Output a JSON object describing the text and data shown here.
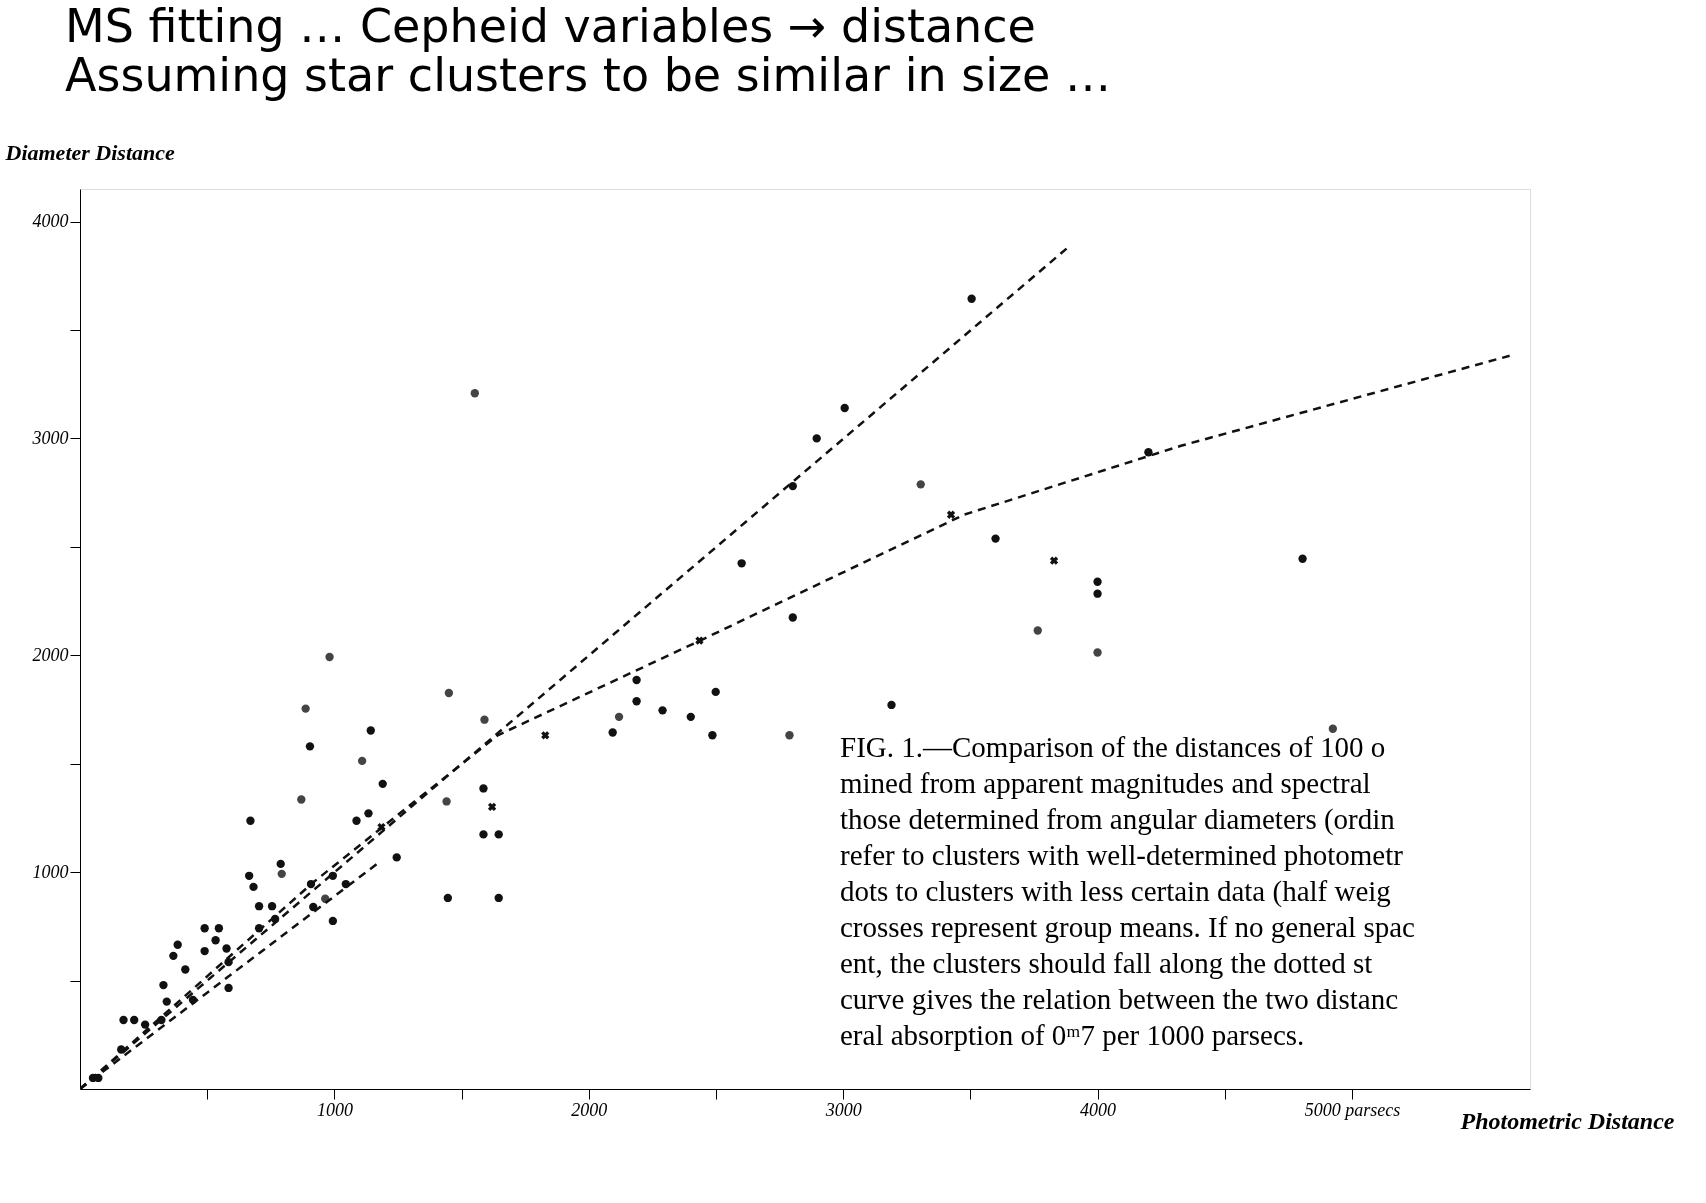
{
  "chart_data": {
    "type": "scatter",
    "title": "MS fitting … Cepheid variables → distance",
    "subtitle": "Assuming star clusters to be similar in size …",
    "xlabel": "Photometric Distance",
    "ylabel": "Diameter Distance",
    "xlim": [
      0,
      5700
    ],
    "ylim": [
      0,
      4150
    ],
    "xticks": [
      {
        "value": 500,
        "label": null
      },
      1000,
      {
        "value": 1500,
        "label": null
      },
      2000,
      {
        "value": 2500,
        "label": null
      },
      3000,
      {
        "value": 3500,
        "label": null
      },
      4000,
      {
        "value": 4500,
        "label": null
      },
      {
        "value": 5000,
        "label": "5000 parsecs"
      }
    ],
    "yticks": [
      {
        "value": 500,
        "label": null
      },
      1000,
      {
        "value": 1500,
        "label": null
      },
      2000,
      {
        "value": 2500,
        "label": null
      },
      3000,
      {
        "value": 3500,
        "label": null
      },
      4000
    ],
    "grid": false,
    "series": [
      {
        "marker": "circle",
        "color": "#111111",
        "x": [
          3505,
          3006,
          2896,
          2802,
          2601,
          2802,
          4200,
          3599,
          4806,
          4000,
          4000,
          2188,
          2188,
          2290,
          2401,
          2499,
          2094,
          3190,
          2486,
          1586,
          1586,
          1646,
          1646,
          1446,
          1143,
          904,
          670,
          1190,
          1134,
          1087,
          1245,
          1045,
          994,
          917,
          994,
          908,
          665,
          682,
          755,
          767,
          704,
          704,
          490,
          546,
          533,
          490,
          576,
          584,
          584,
          384,
          367,
          414,
          328,
          444,
          341,
          320,
          256,
          213,
          171,
          162,
          51,
          72,
          789
        ],
        "values": [
          3644,
          3140,
          3000,
          2780,
          2424,
          2174,
          2936,
          2538,
          2445,
          2339,
          2284,
          1886,
          1788,
          1746,
          1716,
          1831,
          1644,
          1771,
          1631,
          1386,
          1174,
          1174,
          881,
          881,
          1653,
          1580,
          1237,
          1407,
          1271,
          1237,
          1068,
          945,
          983,
          839,
          775,
          945,
          983,
          932,
          843,
          784,
          843,
          741,
          741,
          741,
          686,
          636,
          648,
          585,
          466,
          665,
          614,
          551,
          479,
          411,
          403,
          318,
          297,
          318,
          318,
          182,
          51,
          51,
          1038
        ]
      },
      {
        "marker": "circle",
        "color": "#444444",
        "x": [
          1552,
          981,
          1450,
          887,
          1590,
          1109,
          870,
          793,
          3305,
          3765,
          4000,
          2119,
          1441,
          964,
          2789,
          4925
        ],
        "values": [
          3208,
          1992,
          1826,
          1754,
          1703,
          1513,
          1335,
          992,
          2788,
          2114,
          2013,
          1716,
          1326,
          877,
          1631,
          1661
        ]
      },
      {
        "marker": "cross",
        "color": "#111111",
        "x": [
          3424,
          3829,
          2435,
          1829,
          1620,
          1185
        ],
        "values": [
          2648,
          2436,
          2068,
          1631,
          1301,
          1208
        ]
      },
      {
        "type": "line",
        "line_style": "dashed",
        "color": "#111111",
        "x": [
          0,
          3880
        ],
        "values": [
          0,
          3877
        ]
      },
      {
        "type": "line",
        "line_style": "dashed",
        "color": "#111111",
        "x": [
          0,
          917,
          1642,
          2431,
          3475,
          4328,
          5620
        ],
        "values": [
          0,
          953,
          1631,
          2064,
          2648,
          2966,
          3381
        ]
      },
      {
        "type": "line",
        "line_style": "dashed",
        "color": "#111111",
        "x": [
          0,
          1170
        ],
        "values": [
          0,
          1040
        ]
      }
    ],
    "annotations": [
      "FIG. 1.—Comparison of the distances of 100 o\nmined from apparent magnitudes and spectral\nthose determined from angular diameters (ordin\nrefer to clusters with well-determined photometr\ndots to clusters with less certain data (half weig\ncrosses represent group means. If no general spac\nent, the clusters should fall along the dotted st\ncurve gives the relation between the two distanc\neral absorption of 0ᵐ7 per 1000 parsecs."
    ]
  }
}
